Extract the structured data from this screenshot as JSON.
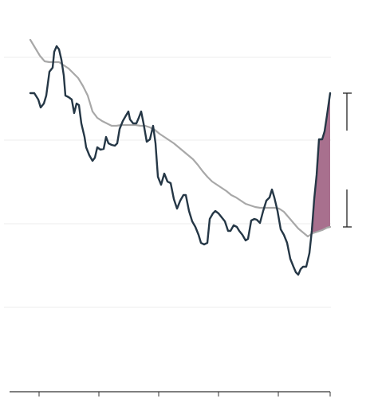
{
  "chart_data": {
    "type": "line",
    "xlim": [
      -26,
      376
    ],
    "xticks": [
      11,
      86,
      161,
      236,
      311,
      376
    ],
    "ylim": [
      -106,
      356
    ],
    "yticks": [
      0,
      105,
      210,
      314
    ],
    "grid": true,
    "fill_color": "#a8708e",
    "series": [
      {
        "color": "#253746",
        "x": [
          0,
          5,
          10,
          13,
          17,
          20,
          24,
          28,
          30,
          33,
          36,
          39,
          42,
          44,
          48,
          52,
          55,
          58,
          61,
          64,
          68,
          70,
          74,
          78,
          81,
          84,
          88,
          92,
          95,
          98,
          102,
          106,
          109,
          112,
          116,
          120,
          123,
          125,
          129,
          133,
          136,
          139,
          142,
          146,
          150,
          154,
          157,
          160,
          164,
          168,
          172,
          176,
          180,
          184,
          188,
          192,
          195,
          199,
          203,
          207,
          211,
          214,
          218,
          222,
          225,
          229,
          232,
          236,
          240,
          244,
          248,
          251,
          255,
          259,
          262,
          266,
          270,
          273,
          277,
          281,
          284,
          288,
          292,
          296,
          300,
          303,
          306,
          310,
          314,
          318,
          322,
          326,
          330,
          333,
          336,
          339,
          342,
          346,
          350,
          353,
          356,
          359,
          362,
          366,
          369,
          372,
          376
        ],
        "values": [
          269,
          269,
          261,
          251,
          256,
          266,
          296,
          301,
          321,
          328,
          324,
          311,
          291,
          266,
          264,
          261,
          244,
          256,
          254,
          231,
          214,
          201,
          191,
          184,
          188,
          201,
          198,
          199,
          214,
          206,
          204,
          203,
          206,
          224,
          234,
          241,
          246,
          236,
          231,
          231,
          238,
          246,
          231,
          208,
          211,
          228,
          206,
          164,
          154,
          168,
          158,
          156,
          136,
          124,
          134,
          141,
          141,
          121,
          108,
          101,
          91,
          81,
          79,
          81,
          111,
          118,
          121,
          118,
          113,
          108,
          96,
          96,
          103,
          101,
          96,
          91,
          84,
          86,
          109,
          111,
          110,
          106,
          121,
          134,
          138,
          148,
          138,
          121,
          98,
          91,
          81,
          61,
          51,
          44,
          41,
          48,
          51,
          51,
          68,
          96,
          136,
          166,
          211,
          211,
          221,
          241,
          269
        ]
      },
      {
        "color": "#a8a8a8",
        "x": [
          0,
          6,
          12,
          18,
          24,
          30,
          36,
          42,
          48,
          54,
          60,
          66,
          72,
          78,
          84,
          90,
          96,
          102,
          108,
          114,
          120,
          126,
          132,
          138,
          144,
          150,
          156,
          162,
          168,
          174,
          180,
          186,
          192,
          198,
          204,
          210,
          216,
          222,
          228,
          234,
          240,
          246,
          252,
          258,
          264,
          270,
          276,
          282,
          288,
          294,
          300,
          306,
          312,
          318,
          324,
          330,
          336,
          342,
          348,
          354,
          360,
          366,
          372,
          376
        ],
        "values": [
          336,
          326,
          316,
          309,
          308,
          308,
          308,
          304,
          300,
          294,
          288,
          278,
          266,
          246,
          238,
          234,
          231,
          228,
          228,
          229,
          229,
          229,
          229,
          228,
          228,
          226,
          223,
          218,
          214,
          210,
          206,
          201,
          196,
          191,
          186,
          179,
          171,
          164,
          158,
          154,
          150,
          146,
          141,
          138,
          134,
          130,
          128,
          126,
          125,
          125,
          125,
          125,
          124,
          120,
          113,
          106,
          99,
          94,
          89,
          93,
          95,
          97,
          100,
          101
        ]
      }
    ]
  }
}
